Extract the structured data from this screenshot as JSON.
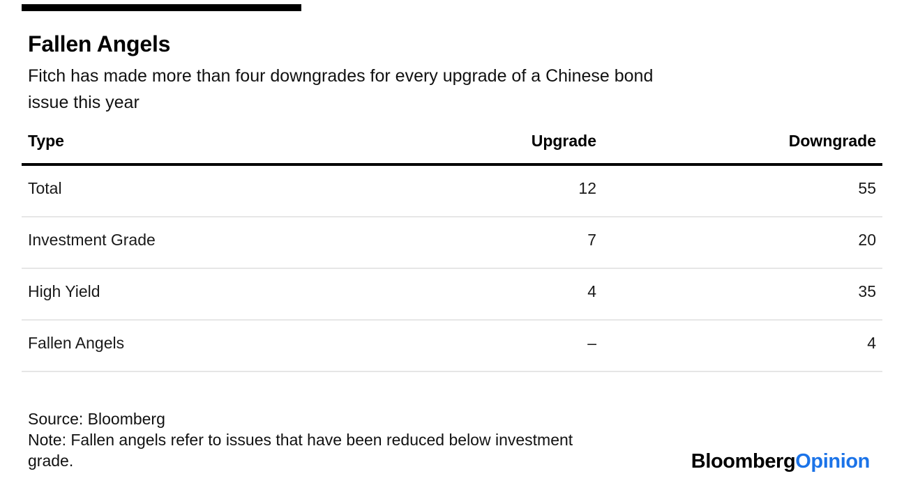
{
  "colors": {
    "accent_bar": "#000000",
    "header_rule": "#000000",
    "row_divider": "#e6e6e6",
    "opinion_blue": "#1b73e8",
    "text": "#000000"
  },
  "header": {
    "title": "Fallen Angels",
    "subtitle_lines": [
      "Fitch has made more than four downgrades for every upgrade of a Chinese bond",
      "issue this year"
    ]
  },
  "table": {
    "columns": {
      "type": "Type",
      "upgrade": "Upgrade",
      "downgrade": "Downgrade"
    },
    "rows": [
      {
        "type": "Total",
        "upgrade": "12",
        "downgrade": "55"
      },
      {
        "type": "Investment Grade",
        "upgrade": "7",
        "downgrade": "20"
      },
      {
        "type": "High Yield",
        "upgrade": "4",
        "downgrade": "35"
      },
      {
        "type": "Fallen Angels",
        "upgrade": "–",
        "downgrade": "4"
      }
    ]
  },
  "footer": {
    "source": "Source: Bloomberg",
    "note_lines": [
      "Note: Fallen angels refer to issues that have been reduced below investment",
      "grade."
    ],
    "logo": {
      "brand": "Bloomberg",
      "suffix": "Opinion"
    }
  },
  "chart_data": {
    "type": "table",
    "title": "Fallen Angels",
    "subtitle": "Fitch has made more than four downgrades for every upgrade of a Chinese bond issue this year",
    "columns": [
      "Type",
      "Upgrade",
      "Downgrade"
    ],
    "rows": [
      {
        "type": "Total",
        "upgrade": 12,
        "downgrade": 55
      },
      {
        "type": "Investment Grade",
        "upgrade": 7,
        "downgrade": 20
      },
      {
        "type": "High Yield",
        "upgrade": 4,
        "downgrade": 35
      },
      {
        "type": "Fallen Angels",
        "upgrade": null,
        "downgrade": 4
      }
    ],
    "missing_value_display": "–",
    "source": "Bloomberg",
    "note": "Fallen angels refer to issues that have been reduced below investment grade."
  }
}
